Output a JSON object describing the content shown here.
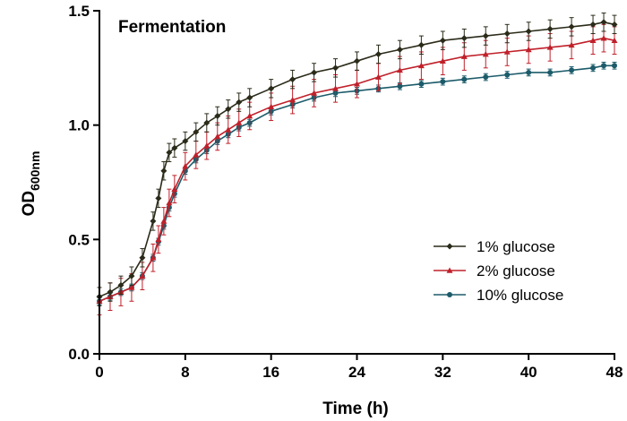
{
  "chart_data": {
    "type": "line",
    "title": "Fermentation",
    "xlabel": "Time (h)",
    "ylabel_main": "OD",
    "ylabel_sub": "600nm",
    "xlim": [
      0,
      48
    ],
    "ylim": [
      0,
      1.5
    ],
    "xticks": [
      0,
      8,
      16,
      24,
      32,
      40,
      48
    ],
    "yticks": [
      0,
      0.5,
      1.0,
      1.5
    ],
    "xtick_labels": [
      "0",
      "8",
      "16",
      "24",
      "32",
      "40",
      "48"
    ],
    "ytick_labels": [
      "0.0",
      "0.5",
      "1.0",
      "1.5"
    ],
    "legend_position": "lower-right",
    "grid": false,
    "series": [
      {
        "name": "1% glucose",
        "color": "#2b2b1a",
        "marker": "diamond",
        "error": 0.04,
        "x": [
          0,
          1,
          2,
          3,
          4,
          5,
          5.5,
          6,
          6.5,
          7,
          8,
          9,
          10,
          11,
          12,
          13,
          14,
          16,
          18,
          20,
          22,
          24,
          26,
          28,
          30,
          32,
          34,
          36,
          38,
          40,
          42,
          44,
          46,
          47,
          48
        ],
        "y": [
          0.25,
          0.27,
          0.3,
          0.34,
          0.42,
          0.58,
          0.68,
          0.8,
          0.88,
          0.9,
          0.93,
          0.97,
          1.01,
          1.04,
          1.07,
          1.1,
          1.12,
          1.16,
          1.2,
          1.23,
          1.25,
          1.28,
          1.31,
          1.33,
          1.35,
          1.37,
          1.38,
          1.39,
          1.4,
          1.41,
          1.42,
          1.43,
          1.44,
          1.45,
          1.44
        ]
      },
      {
        "name": "2% glucose",
        "color": "#c0202a",
        "marker": "triangle",
        "error": 0.06,
        "x": [
          0,
          1,
          2,
          3,
          4,
          5,
          5.5,
          6,
          6.5,
          7,
          8,
          9,
          10,
          11,
          12,
          13,
          14,
          16,
          18,
          20,
          22,
          24,
          26,
          28,
          30,
          32,
          34,
          36,
          38,
          40,
          42,
          44,
          46,
          47,
          48
        ],
        "y": [
          0.23,
          0.25,
          0.27,
          0.29,
          0.34,
          0.42,
          0.5,
          0.58,
          0.66,
          0.72,
          0.82,
          0.87,
          0.91,
          0.95,
          0.98,
          1.01,
          1.04,
          1.08,
          1.11,
          1.14,
          1.16,
          1.18,
          1.21,
          1.24,
          1.26,
          1.28,
          1.3,
          1.31,
          1.32,
          1.33,
          1.34,
          1.35,
          1.37,
          1.38,
          1.37
        ]
      },
      {
        "name": "10% glucose",
        "color": "#1c5b6a",
        "marker": "circle",
        "error": 0.015,
        "x": [
          0,
          1,
          2,
          3,
          4,
          5,
          5.5,
          6,
          6.5,
          7,
          8,
          9,
          10,
          11,
          12,
          13,
          14,
          16,
          18,
          20,
          22,
          24,
          26,
          28,
          30,
          32,
          34,
          36,
          38,
          40,
          42,
          44,
          46,
          47,
          48
        ],
        "y": [
          0.23,
          0.25,
          0.27,
          0.29,
          0.34,
          0.42,
          0.49,
          0.56,
          0.64,
          0.7,
          0.8,
          0.85,
          0.89,
          0.93,
          0.96,
          0.99,
          1.01,
          1.06,
          1.09,
          1.12,
          1.14,
          1.15,
          1.16,
          1.17,
          1.18,
          1.19,
          1.2,
          1.21,
          1.22,
          1.23,
          1.23,
          1.24,
          1.25,
          1.26,
          1.26
        ]
      }
    ]
  }
}
